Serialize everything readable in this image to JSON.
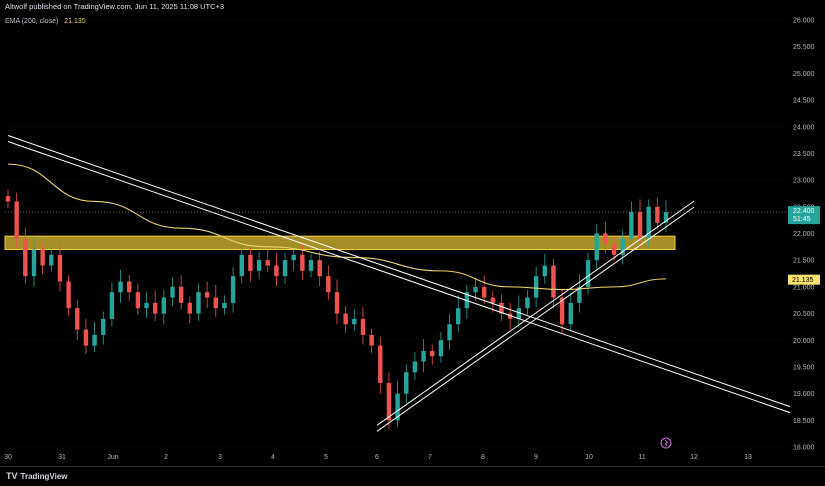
{
  "header": {
    "publisher": "Altwolf published on TradingView.com, Jun 11, 2025 11:08 UTC+3"
  },
  "indicator": {
    "label": "EMA (200, close)",
    "value": "21.135"
  },
  "footer": {
    "brand": "TradingView"
  },
  "colors": {
    "background": "#000000",
    "candle_up": "#26a69a",
    "candle_down": "#ef5350",
    "ema": "#e8d46d",
    "zone": "#d4b62e",
    "trendline": "#ffffff",
    "price_badge": "#26a69a",
    "ema_badge": "#f7e26b"
  },
  "chart_data": {
    "type": "candlestick",
    "x_ticks": [
      "30",
      "31",
      "Jun",
      "2",
      "3",
      "4",
      "5",
      "6",
      "7",
      "8",
      "9",
      "10",
      "11",
      "12",
      "13"
    ],
    "y_ticks": [
      "26.000",
      "25.500",
      "25.000",
      "24.500",
      "24.000",
      "23.500",
      "23.000",
      "22.500",
      "22.000",
      "21.500",
      "21.000",
      "20.500",
      "20.000",
      "19.500",
      "19.000",
      "18.500",
      "18.000"
    ],
    "ylim": [
      18.0,
      26.0
    ],
    "last_price": "22.400",
    "countdown": "51:45",
    "ema_value": "21.135",
    "close_series": [
      22.6,
      21.9,
      21.2,
      21.7,
      21.4,
      21.6,
      21.1,
      20.6,
      20.2,
      19.9,
      20.1,
      20.4,
      20.9,
      21.1,
      20.9,
      20.6,
      20.7,
      20.5,
      20.8,
      21.0,
      20.7,
      20.5,
      20.9,
      20.8,
      20.6,
      20.7,
      21.2,
      21.6,
      21.3,
      21.5,
      21.4,
      21.2,
      21.5,
      21.6,
      21.3,
      21.5,
      21.2,
      20.9,
      20.5,
      20.3,
      20.4,
      20.1,
      19.9,
      19.2,
      18.5,
      19.0,
      19.4,
      19.6,
      19.8,
      19.7,
      20.0,
      20.3,
      20.6,
      20.9,
      21.0,
      20.8,
      20.7,
      20.5,
      20.4,
      20.6,
      20.8,
      21.2,
      21.4,
      20.8,
      20.3,
      20.7,
      21.0,
      21.5,
      22.0,
      21.8,
      21.6,
      21.9,
      22.4,
      21.9,
      22.5,
      22.2,
      22.4
    ],
    "ema_series": [
      {
        "i": 0,
        "y": 23.3
      },
      {
        "i": 10,
        "y": 22.6
      },
      {
        "i": 20,
        "y": 22.1
      },
      {
        "i": 30,
        "y": 21.75
      },
      {
        "i": 40,
        "y": 21.55
      },
      {
        "i": 50,
        "y": 21.3
      },
      {
        "i": 58,
        "y": 21.0
      },
      {
        "i": 64,
        "y": 20.95
      },
      {
        "i": 70,
        "y": 21.0
      },
      {
        "i": 76,
        "y": 21.15
      }
    ],
    "resistance_zone": {
      "low": 21.7,
      "high": 21.95
    },
    "trendlines": [
      {
        "name": "",
        "from": {
          "x": "30",
          "y": 23.78
        },
        "to": {
          "x": "13+",
          "y": 18.7
        }
      },
      {
        "name": "",
        "from": {
          "x": "6",
          "y": 18.35
        },
        "to": {
          "x": "12",
          "y": 22.55
        }
      }
    ],
    "title": "",
    "xlabel": "",
    "ylabel": ""
  }
}
